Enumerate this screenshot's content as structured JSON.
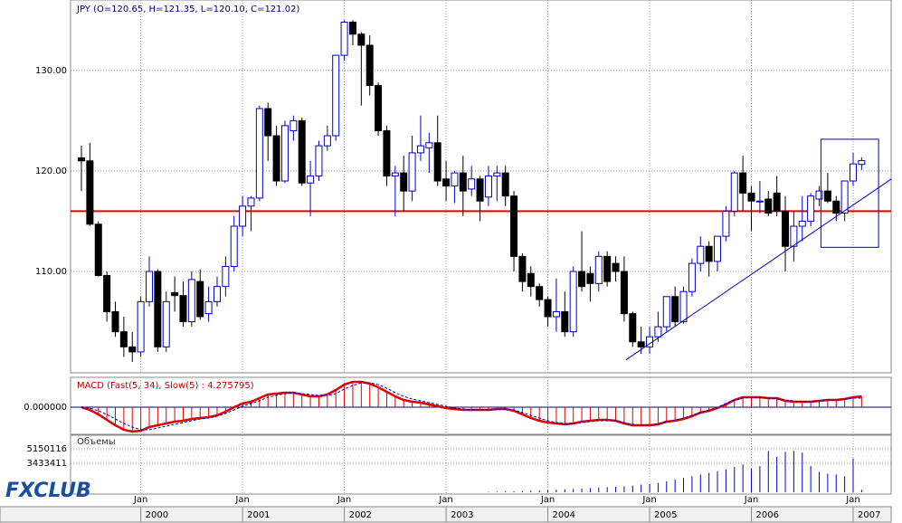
{
  "chart_data": {
    "type": "candlestick",
    "title": "JPY (O=120.65, H=121.35, L=120.10, C=121.02)",
    "logo": "FXCLUB",
    "open": [
      121.3,
      121,
      114.7,
      109.6,
      106,
      104,
      102.5,
      102,
      107,
      110,
      102.5,
      107.9,
      107.6,
      105,
      109,
      105.8,
      107,
      108.5,
      110.5,
      114.5,
      116.5,
      117.3,
      126.2,
      123.5,
      119,
      124,
      125,
      118.8,
      119.5,
      122.5,
      123.5,
      131.5,
      134.8,
      133.6,
      132.5,
      128.5,
      124,
      119.5,
      119.8,
      118,
      121.8,
      122.3,
      122.8,
      119.2,
      118.5,
      119.8,
      118.2,
      119.2,
      117.4,
      119.5,
      119.8,
      117.5,
      111.5,
      109.8,
      108.5,
      107.2,
      105.5,
      106,
      104,
      110,
      109.8,
      108.8,
      111.5,
      110.8,
      110,
      105.8,
      103,
      102.5,
      103.5,
      104.5,
      107.5,
      105,
      108,
      110.8,
      112.5,
      111,
      113.5,
      116,
      119.8,
      117.8,
      117,
      117.2,
      117.8,
      116,
      112.5,
      114.5,
      115,
      117.2,
      118,
      117,
      115.8,
      119,
      120.65
    ],
    "high": [
      122.5,
      122.8,
      115,
      110,
      107,
      105.5,
      104,
      107.5,
      111.5,
      110.2,
      108,
      109.5,
      109,
      110,
      110.2,
      108.5,
      109.5,
      111.5,
      115.5,
      117.5,
      117.5,
      126.5,
      126.8,
      124.5,
      125,
      125.5,
      125.3,
      121,
      123,
      124.5,
      131.5,
      135,
      135,
      133.8,
      133.5,
      128.8,
      124.5,
      120.5,
      121.5,
      123.5,
      125.5,
      123.8,
      125.5,
      121,
      120,
      121.5,
      120.5,
      119.5,
      120.5,
      120.5,
      120.5,
      118,
      111.8,
      110.5,
      108.8,
      107.5,
      109.3,
      108,
      110.5,
      114,
      110.5,
      112,
      112,
      111.5,
      111.5,
      106,
      104.5,
      104.5,
      106,
      107.5,
      108.5,
      108.5,
      111.3,
      113.5,
      113,
      113.5,
      116.5,
      120,
      121.5,
      118.5,
      119,
      118,
      119.5,
      117.5,
      116,
      117.5,
      117.8,
      118.5,
      119.8,
      117.5,
      119,
      121.8,
      121.35
    ],
    "low": [
      118,
      114.5,
      109.5,
      105,
      103.5,
      101.5,
      101,
      101.5,
      106.5,
      102,
      102,
      106,
      104.5,
      104.5,
      105.2,
      105,
      106.5,
      107.5,
      110,
      113.5,
      114,
      117,
      121,
      118.5,
      118.8,
      123,
      118.5,
      115.5,
      119,
      122,
      123,
      131,
      132.5,
      126.5,
      127.5,
      123.5,
      118.5,
      115.5,
      116,
      117,
      121,
      119.8,
      118.5,
      117,
      116.8,
      115.5,
      117.5,
      115,
      116.5,
      117,
      116.5,
      110,
      108,
      107.5,
      106.5,
      104.5,
      104,
      103.5,
      103.5,
      108,
      107,
      108,
      108.5,
      109,
      105,
      102.5,
      101.8,
      101.8,
      103,
      104,
      104.5,
      104.8,
      107.5,
      110,
      109.5,
      110,
      113,
      115.5,
      116,
      114,
      115.8,
      115.5,
      115.5,
      110,
      111,
      113,
      114.5,
      116.5,
      116.8,
      115,
      115,
      118.5,
      120.1
    ],
    "close": [
      121,
      114.7,
      109.6,
      106,
      104,
      102.5,
      102,
      107,
      110,
      102.5,
      107,
      107.6,
      105,
      109.2,
      105.5,
      107,
      108.5,
      110.5,
      114.5,
      116.5,
      117.3,
      126.2,
      123.5,
      119,
      124.5,
      125,
      118.8,
      119.5,
      122.5,
      123.5,
      131.5,
      134.8,
      133.6,
      132.5,
      128.5,
      124,
      119.5,
      119.8,
      118,
      121.8,
      122.5,
      122.8,
      119,
      118.5,
      119.8,
      118,
      119.2,
      117,
      119.5,
      119.8,
      117.5,
      111.5,
      109,
      108.5,
      107.2,
      105.5,
      106,
      104,
      110,
      108.5,
      108.8,
      111.5,
      109,
      110,
      105.8,
      103,
      102.5,
      103.5,
      104.5,
      107.5,
      105,
      108,
      110.8,
      112.5,
      111,
      113.5,
      116,
      119.8,
      117.8,
      117,
      117,
      115.8,
      116,
      112.5,
      114.5,
      115,
      117.5,
      118,
      117,
      115.8,
      119,
      120.7,
      121.02
    ],
    "up_color": "#ffffff",
    "down_color": "#000000",
    "edge_color": "#0000cc",
    "xlim": [
      -1.28,
      95.48
    ],
    "ylim": [
      100.1,
      137.0
    ],
    "yticks": [
      {
        "value": 110,
        "label": "110.00"
      },
      {
        "value": 120,
        "label": "120.00"
      },
      {
        "value": 130,
        "label": "130.00"
      }
    ],
    "xticks": [
      {
        "value": 7,
        "label": "Jan"
      },
      {
        "value": 19,
        "label": "Jan"
      },
      {
        "value": 31,
        "label": "Jan"
      },
      {
        "value": 43,
        "label": "Jan"
      },
      {
        "value": 55,
        "label": "Jan"
      },
      {
        "value": 67,
        "label": "Jan"
      },
      {
        "value": 79,
        "label": "Jan"
      },
      {
        "value": 91,
        "label": "Jan"
      }
    ],
    "year_ticks": [
      {
        "value": 7,
        "label": "2000"
      },
      {
        "value": 19,
        "label": "2001"
      },
      {
        "value": 31,
        "label": "2002"
      },
      {
        "value": 43,
        "label": "2003"
      },
      {
        "value": 55,
        "label": "2004"
      },
      {
        "value": 67,
        "label": "2005"
      },
      {
        "value": 79,
        "label": "2006"
      },
      {
        "value": 91,
        "label": "2007"
      }
    ],
    "grid": true,
    "hline": {
      "value": 116.0,
      "color": "#e00000"
    },
    "trendline": {
      "x": [
        64.2,
        95.5
      ],
      "y": [
        101.2,
        119.2
      ],
      "color": "#0000cc"
    },
    "box": {
      "x": [
        87.2,
        94.0
      ],
      "y": [
        112.4,
        123.15
      ],
      "color": "#0000cc"
    },
    "macd": {
      "label": "MACD (Fast(5, 34), Slow(5) : 4.275795)",
      "ylim": [
        -3.0,
        3.2
      ],
      "yticks": [
        {
          "value": 0,
          "label": "0.000000"
        }
      ],
      "color": "#e00000",
      "signal_color": "#0000cc",
      "values": [
        0,
        -0.3,
        -0.8,
        -1.4,
        -2.0,
        -2.5,
        -2.7,
        -2.6,
        -2.2,
        -2.0,
        -1.8,
        -1.6,
        -1.5,
        -1.3,
        -1.2,
        -1.1,
        -0.9,
        -0.5,
        0.0,
        0.4,
        0.6,
        1.0,
        1.4,
        1.5,
        1.6,
        1.6,
        1.4,
        1.2,
        1.2,
        1.4,
        1.9,
        2.5,
        2.8,
        2.8,
        2.6,
        2.2,
        1.7,
        1.2,
        0.8,
        0.6,
        0.5,
        0.3,
        0.1,
        -0.1,
        -0.2,
        -0.3,
        -0.3,
        -0.3,
        -0.3,
        -0.2,
        -0.2,
        -0.4,
        -0.8,
        -1.2,
        -1.5,
        -1.7,
        -1.8,
        -1.9,
        -1.8,
        -1.6,
        -1.5,
        -1.4,
        -1.4,
        -1.5,
        -1.8,
        -2.0,
        -2.0,
        -2.0,
        -1.9,
        -1.6,
        -1.5,
        -1.3,
        -1.0,
        -0.6,
        -0.4,
        -0.1,
        0.3,
        0.8,
        1.1,
        1.1,
        1.1,
        1.0,
        1.0,
        0.7,
        0.6,
        0.6,
        0.6,
        0.7,
        0.8,
        0.8,
        0.9,
        1.1,
        1.2
      ],
      "signal": [
        0,
        -0.1,
        -0.4,
        -0.8,
        -1.3,
        -1.8,
        -2.2,
        -2.5,
        -2.5,
        -2.3,
        -2.1,
        -1.9,
        -1.7,
        -1.5,
        -1.3,
        -1.2,
        -1.0,
        -0.7,
        -0.3,
        0.1,
        0.4,
        0.7,
        1.1,
        1.3,
        1.5,
        1.6,
        1.5,
        1.4,
        1.3,
        1.3,
        1.5,
        2.0,
        2.4,
        2.7,
        2.7,
        2.5,
        2.1,
        1.6,
        1.2,
        0.9,
        0.7,
        0.5,
        0.3,
        0.1,
        -0.1,
        -0.2,
        -0.3,
        -0.3,
        -0.3,
        -0.3,
        -0.2,
        -0.3,
        -0.6,
        -0.9,
        -1.2,
        -1.5,
        -1.7,
        -1.8,
        -1.8,
        -1.7,
        -1.6,
        -1.5,
        -1.5,
        -1.5,
        -1.7,
        -1.9,
        -2.0,
        -2.0,
        -1.8,
        -1.6,
        -1.4,
        -1.2,
        -0.9,
        -0.6,
        -0.3,
        0.0,
        0.4,
        0.8,
        1.0,
        1.1,
        1.1,
        1.0,
        0.9,
        0.8,
        0.7,
        0.6,
        0.6,
        0.7,
        0.8,
        0.8,
        0.9,
        1.0,
        1.0
      ]
    },
    "volume": {
      "label": "Объемы",
      "ylim": [
        0,
        6650000
      ],
      "yticks": [
        5150116,
        3433411
      ],
      "color": "#0000cc",
      "values": [
        0,
        0,
        0,
        0,
        0,
        0,
        0,
        0,
        0,
        0,
        0,
        0,
        0,
        0,
        0,
        0,
        0,
        0,
        0,
        0,
        0,
        0,
        0,
        0,
        0,
        0,
        0,
        0,
        0,
        0,
        0,
        0,
        0,
        0,
        0,
        0,
        0,
        0,
        0,
        0,
        0,
        0,
        0,
        0,
        0,
        0,
        0,
        0,
        50000,
        80000,
        100000,
        120000,
        150000,
        180000,
        200000,
        250000,
        300000,
        350000,
        400000,
        450000,
        500000,
        550000,
        600000,
        650000,
        700000,
        800000,
        900000,
        1000000,
        1100000,
        1300000,
        1500000,
        1700000,
        1900000,
        2100000,
        2300000,
        2500000,
        2700000,
        3000000,
        3300000,
        2800000,
        3100000,
        4900000,
        4200000,
        4800000,
        4900000,
        4700000,
        3100000,
        2400000,
        2200000,
        2100000,
        1900000,
        4000000,
        300000
      ]
    }
  }
}
